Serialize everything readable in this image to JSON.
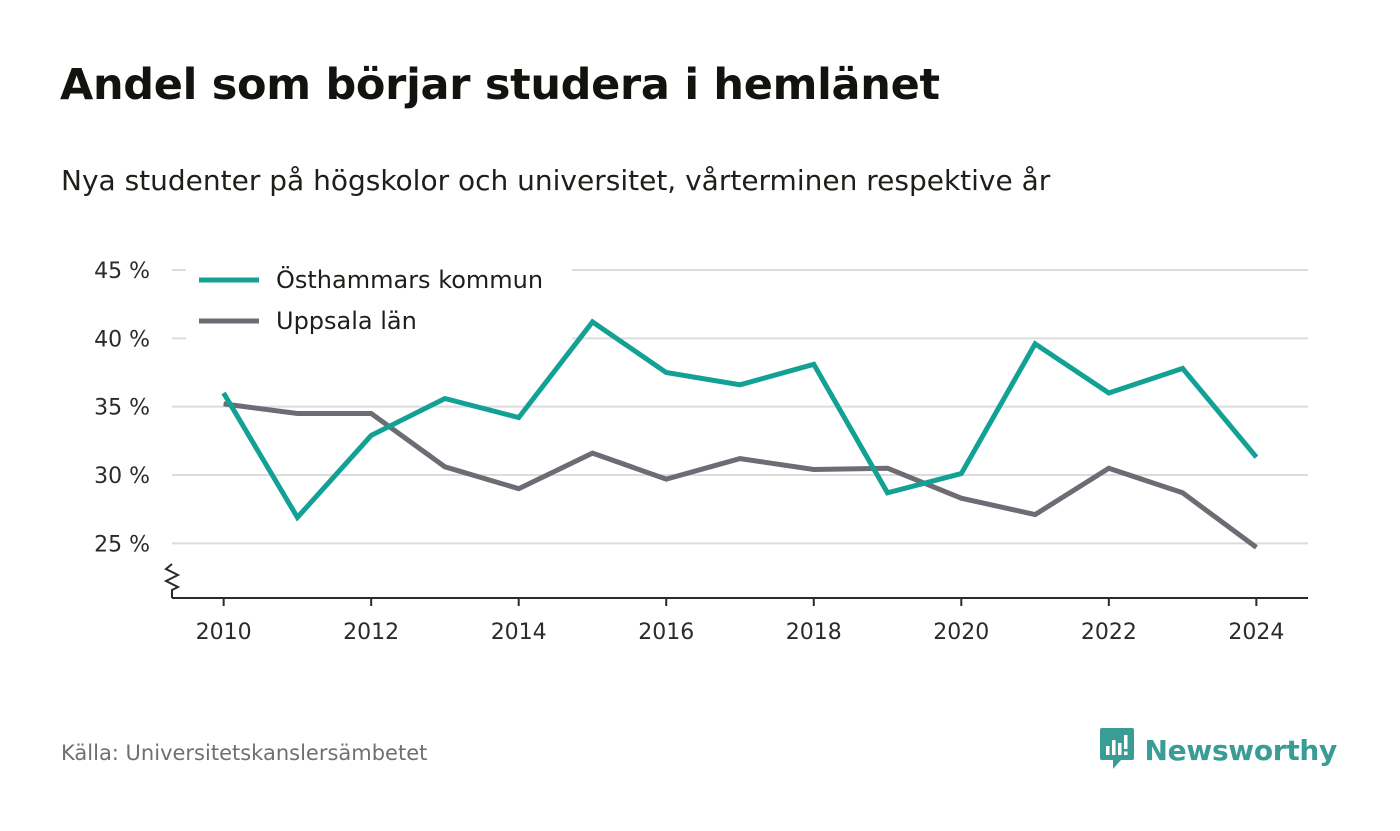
{
  "title": "Andel som börjar studera i hemlänet",
  "subtitle": "Nya studenter på högskolor och universitet, vårterminen respektive år",
  "source": "Källa: Universitetskanslersämbetet",
  "brand": {
    "name": "Newsworthy",
    "icon": "newsworthy-logo-icon",
    "color": "#3a9d95"
  },
  "chart_data": {
    "type": "line",
    "x": [
      2010,
      2011,
      2012,
      2013,
      2014,
      2015,
      2016,
      2017,
      2018,
      2019,
      2020,
      2021,
      2022,
      2023,
      2024
    ],
    "series": [
      {
        "name": "Östhammars kommun",
        "color": "#13a095",
        "values": [
          36.0,
          26.9,
          32.9,
          35.6,
          34.2,
          41.2,
          37.5,
          36.6,
          38.1,
          28.7,
          30.1,
          39.6,
          36.0,
          37.8,
          31.3
        ]
      },
      {
        "name": "Uppsala län",
        "color": "#6d6c74",
        "values": [
          35.2,
          34.5,
          34.5,
          30.6,
          29.0,
          31.6,
          29.7,
          31.2,
          30.4,
          30.5,
          28.3,
          27.1,
          30.5,
          28.7,
          24.7
        ]
      }
    ],
    "xticks": [
      2010,
      2012,
      2014,
      2016,
      2018,
      2020,
      2022,
      2024
    ],
    "xtick_labels": [
      "2010",
      "2012",
      "2014",
      "2016",
      "2018",
      "2020",
      "2022",
      "2024"
    ],
    "yticks": [
      25,
      30,
      35,
      40,
      45
    ],
    "ytick_labels": [
      "25 %",
      "30 %",
      "35 %",
      "40 %",
      "45 %"
    ],
    "ylim": [
      21,
      45
    ],
    "xlim": [
      2009.3,
      2024.7
    ],
    "y_axis_break": true,
    "grid": true,
    "legend_position": "top-left"
  }
}
